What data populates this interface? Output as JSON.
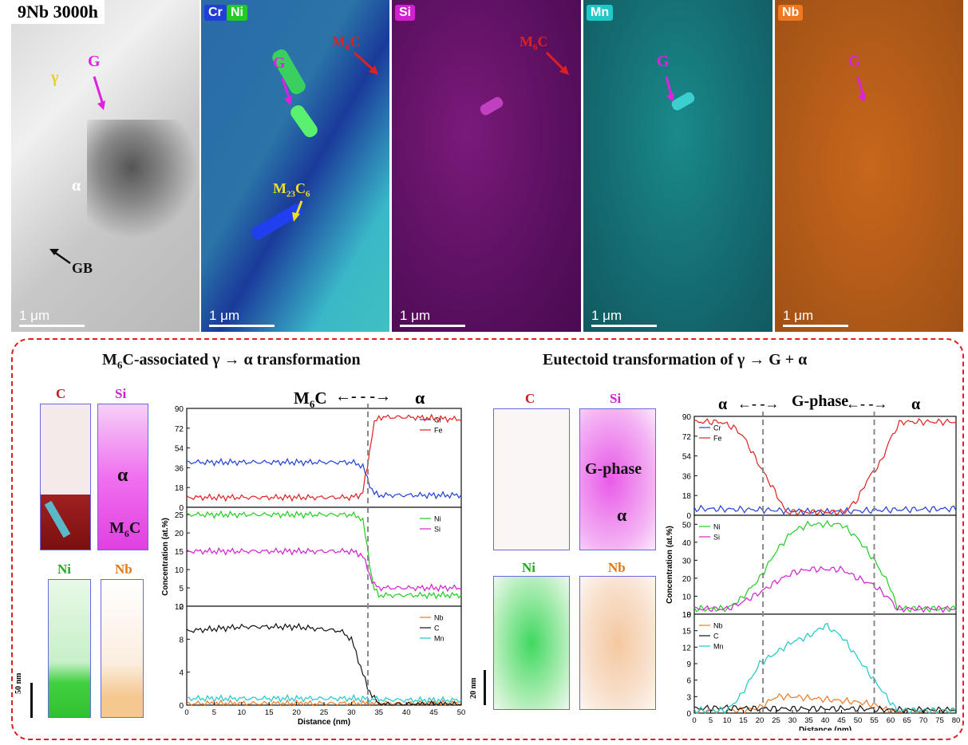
{
  "sem": {
    "panel_title": "9Nb 3000h",
    "scale_label": "1 μm",
    "gamma": "γ",
    "G": "G",
    "alpha": "α",
    "GB": "GB",
    "maps": [
      "Cr",
      "Ni",
      "Si",
      "Mn",
      "Nb"
    ],
    "M6C": "M6C",
    "M23C6": "M23C6"
  },
  "colors": {
    "Cr": "#1f3fd8",
    "Ni": "#22cc22",
    "Si": "#d020d0",
    "Mn": "#20c8c8",
    "Nb": "#f07820",
    "frame": "#e02020"
  },
  "left": {
    "title": "M6C-associated γ → α transformation",
    "atoms": [
      "C",
      "Si",
      "Ni",
      "Nb"
    ],
    "alpha": "α",
    "M6C": "M6C",
    "scale": "50 nm",
    "header_left": "M6C",
    "header_right": "α"
  },
  "right": {
    "title": "Eutectoid transformation of γ → G + α",
    "atoms": [
      "C",
      "Si",
      "Ni",
      "Nb"
    ],
    "gphase": "G-phase",
    "alpha": "α",
    "scale": "20 nm",
    "header_left": "α",
    "header_mid": "G-phase",
    "header_right": "α"
  },
  "chart_data": [
    {
      "type": "line",
      "xlabel": "Distance (nm)",
      "ylabel": "Concentration (at.%)",
      "xlim": [
        0,
        50
      ],
      "xticks": [
        0,
        5,
        10,
        15,
        20,
        25,
        30,
        35,
        40,
        45,
        50
      ],
      "boundary": [
        33
      ],
      "panels": [
        {
          "ylim": [
            0,
            90
          ],
          "yticks": [
            0,
            18,
            36,
            54,
            72,
            90
          ],
          "series": [
            {
              "name": "Cr",
              "x": [
                0,
                10,
                20,
                30,
                32,
                33,
                34,
                35,
                40,
                50
              ],
              "values": [
                41,
                41,
                41,
                41,
                38,
                25,
                13,
                11,
                11,
                11
              ]
            },
            {
              "name": "Fe",
              "x": [
                0,
                10,
                20,
                30,
                32,
                33,
                34,
                35,
                40,
                50
              ],
              "values": [
                9,
                9,
                9,
                9,
                12,
                40,
                75,
                82,
                82,
                80
              ]
            }
          ]
        },
        {
          "ylim": [
            0,
            27
          ],
          "yticks": [
            0,
            5,
            10,
            15,
            20,
            25
          ],
          "series": [
            {
              "name": "Ni",
              "x": [
                0,
                10,
                20,
                30,
                32,
                33,
                34,
                35,
                40,
                50
              ],
              "values": [
                25,
                25,
                25,
                25,
                24,
                15,
                5,
                3,
                3,
                3
              ]
            },
            {
              "name": "Si",
              "x": [
                0,
                10,
                20,
                30,
                32,
                33,
                34,
                35,
                40,
                50
              ],
              "values": [
                15,
                15,
                15,
                15,
                14,
                10,
                6,
                5,
                5,
                5
              ]
            }
          ]
        },
        {
          "ylim": [
            0,
            12
          ],
          "yticks": [
            0,
            4,
            8,
            12
          ],
          "series": [
            {
              "name": "Nb",
              "x": [
                0,
                10,
                20,
                30,
                35,
                40,
                50
              ],
              "values": [
                0.2,
                0.2,
                0.2,
                0.2,
                0.2,
                0.2,
                0.2
              ]
            },
            {
              "name": "C",
              "x": [
                0,
                10,
                20,
                28,
                30,
                31,
                32,
                33,
                34,
                35,
                50
              ],
              "values": [
                9,
                9.5,
                9.5,
                9,
                8,
                6,
                4,
                2,
                1,
                0.1,
                0.1
              ]
            },
            {
              "name": "Mn",
              "x": [
                0,
                10,
                20,
                30,
                35,
                40,
                50
              ],
              "values": [
                0.8,
                0.8,
                0.8,
                0.8,
                0.7,
                0.6,
                0.6
              ]
            }
          ]
        }
      ]
    },
    {
      "type": "line",
      "xlabel": "Distance (nm)",
      "ylabel": "Concentration (at.%)",
      "xlim": [
        0,
        80
      ],
      "xticks": [
        0,
        5,
        10,
        15,
        20,
        25,
        30,
        35,
        40,
        45,
        50,
        55,
        60,
        65,
        70,
        75,
        80
      ],
      "boundary": [
        21,
        55
      ],
      "panels": [
        {
          "ylim": [
            0,
            90
          ],
          "yticks": [
            0,
            18,
            36,
            54,
            72,
            90
          ],
          "series": [
            {
              "name": "Cr",
              "x": [
                0,
                20,
                30,
                40,
                50,
                60,
                80
              ],
              "values": [
                6,
                5,
                4,
                3,
                4,
                5,
                6
              ]
            },
            {
              "name": "Fe",
              "x": [
                0,
                8,
                12,
                15,
                20,
                25,
                28,
                46,
                50,
                53,
                57,
                60,
                63,
                80
              ],
              "values": [
                85,
                85,
                80,
                72,
                45,
                20,
                3,
                3,
                15,
                33,
                48,
                70,
                85,
                85
              ]
            }
          ]
        },
        {
          "ylim": [
            0,
            55
          ],
          "yticks": [
            0,
            10,
            20,
            30,
            40,
            50
          ],
          "series": [
            {
              "name": "Ni",
              "x": [
                0,
                10,
                14,
                20,
                25,
                30,
                35,
                45,
                50,
                55,
                60,
                62,
                80
              ],
              "values": [
                3,
                3,
                8,
                20,
                35,
                46,
                50,
                50,
                42,
                30,
                15,
                3,
                3
              ]
            },
            {
              "name": "Si",
              "x": [
                0,
                10,
                14,
                20,
                25,
                30,
                35,
                45,
                50,
                55,
                60,
                62,
                80
              ],
              "values": [
                3,
                3,
                6,
                12,
                18,
                23,
                25,
                25,
                20,
                16,
                8,
                3,
                3
              ]
            }
          ]
        },
        {
          "ylim": [
            0,
            18
          ],
          "yticks": [
            0,
            3,
            6,
            9,
            12,
            15,
            18
          ],
          "series": [
            {
              "name": "Nb",
              "x": [
                0,
                15,
                20,
                25,
                30,
                40,
                50,
                55,
                60,
                80
              ],
              "values": [
                0.3,
                0.5,
                1,
                3,
                3,
                2.5,
                2,
                1.5,
                0.3,
                0.3
              ]
            },
            {
              "name": "C",
              "x": [
                0,
                10,
                20,
                30,
                40,
                50,
                60,
                80
              ],
              "values": [
                0.8,
                1,
                0.8,
                0.8,
                0.8,
                0.8,
                0.6,
                0.6
              ]
            },
            {
              "name": "Mn",
              "x": [
                0,
                10,
                14,
                20,
                25,
                30,
                35,
                40,
                45,
                50,
                55,
                60,
                62,
                80
              ],
              "values": [
                0.5,
                0.5,
                3,
                9,
                11,
                13,
                14,
                16,
                14,
                10,
                6,
                2,
                0.5,
                0.5
              ]
            }
          ]
        }
      ]
    }
  ]
}
